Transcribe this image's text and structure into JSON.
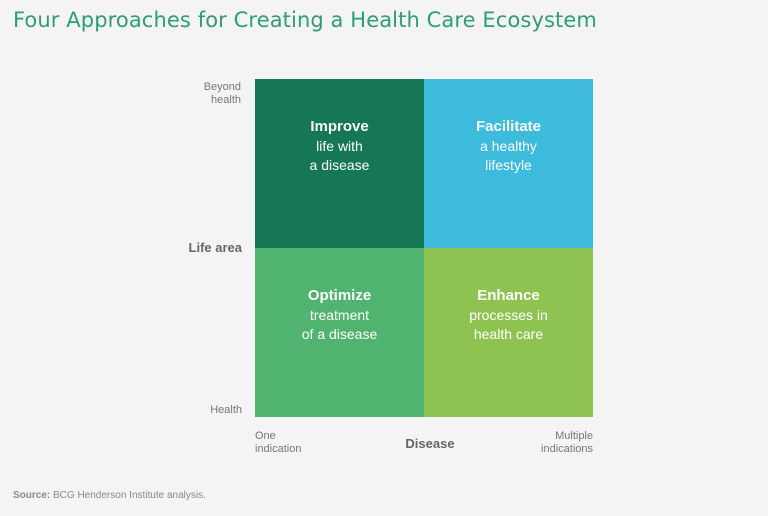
{
  "title": "Four Approaches for Creating a Health Care Ecosystem",
  "y_axis": {
    "label": "Life area",
    "top_line1": "Beyond",
    "top_line2": "health",
    "bottom": "Health"
  },
  "x_axis": {
    "label": "Disease",
    "left_line1": "One",
    "left_line2": "indication",
    "right_line1": "Multiple",
    "right_line2": "indications"
  },
  "quadrants": {
    "top_left": {
      "heading": "Improve",
      "line1": "life with",
      "line2": "a disease",
      "color": "#157753"
    },
    "top_right": {
      "heading": "Facilitate",
      "line1": "a healthy",
      "line2": "lifestyle",
      "color": "#3cbbdc"
    },
    "bottom_left": {
      "heading": "Optimize",
      "line1": "treatment",
      "line2": "of a disease",
      "color": "#50b36f"
    },
    "bottom_right": {
      "heading": "Enhance",
      "line1": "processes in",
      "line2": "health care",
      "color": "#8fc351"
    }
  },
  "source": {
    "label": "Source:",
    "text": "BCG Henderson Institute analysis."
  },
  "colors": {
    "title": "#2c9e7a",
    "background": "#f4f4f4"
  }
}
